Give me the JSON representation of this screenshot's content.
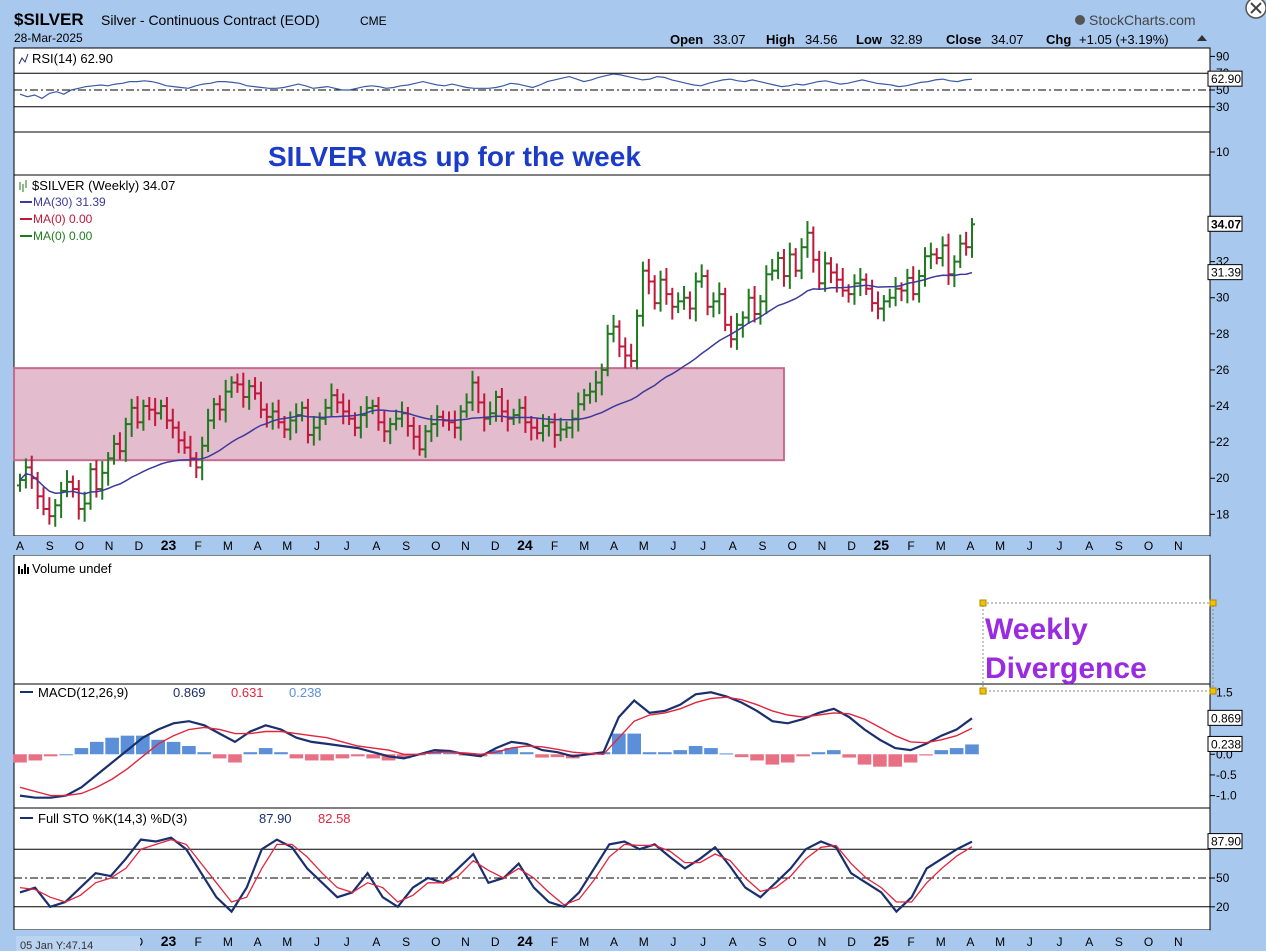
{
  "header": {
    "symbol": "$SILVER",
    "description": "Silver - Continuous Contract (EOD)",
    "exchange": "CME",
    "date": "28-Mar-2025",
    "brand": "StockCharts.com",
    "open_label": "Open",
    "open": "33.07",
    "high_label": "High",
    "high": "34.56",
    "low_label": "Low",
    "low": "32.89",
    "close_label": "Close",
    "close": "34.07",
    "chg_label": "Chg",
    "chg": "+1.05 (+3.19%)"
  },
  "annotations": {
    "headline": "SILVER was up for the week",
    "weekly": "Weekly",
    "divergence": "Divergence"
  },
  "footer": {
    "cursor_readout": "05 Jan Y:47.14"
  },
  "colors": {
    "bull": "#1f7a1f",
    "bear": "#c0173a",
    "ma": "#3c3a9a",
    "macd": "#1a2f6e",
    "signal": "#e0263e",
    "hist_pos": "#5b8fd8",
    "hist_neg": "#e87084",
    "box_fill": "#d9a6bd",
    "box_stroke": "#c86a8f",
    "panel_bg": "#ffffff",
    "outer_bg": "#a9c8ee",
    "headline": "#1a3cc8",
    "divergence": "#9a2be0"
  },
  "chart_data": [
    {
      "type": "line",
      "panel": "rsi",
      "title": "RSI(14) 62.90",
      "current": 62.9,
      "ylim": [
        0,
        100
      ],
      "ticks": [
        "90",
        "70",
        "50",
        "30",
        "10"
      ],
      "levels": [
        70,
        50,
        30
      ],
      "values": [
        45,
        42,
        44,
        40,
        46,
        48,
        45,
        50,
        52,
        54,
        55,
        56,
        55,
        57,
        58,
        60,
        60,
        61,
        60,
        58,
        55,
        54,
        53,
        52,
        55,
        57,
        58,
        60,
        60,
        59,
        58,
        55,
        54,
        53,
        52,
        52,
        53,
        55,
        57,
        55,
        52,
        53,
        54,
        52,
        50,
        50,
        52,
        54,
        55,
        54,
        52,
        53,
        55,
        56,
        58,
        60,
        58,
        56,
        55,
        57,
        55,
        53,
        52,
        52,
        52,
        53,
        55,
        58,
        57,
        55,
        53,
        56,
        60,
        62,
        64,
        66,
        63,
        60,
        62,
        65,
        67,
        69,
        68,
        66,
        64,
        62,
        63,
        66,
        65,
        62,
        60,
        58,
        56,
        55,
        58,
        60,
        62,
        63,
        61,
        60,
        62,
        60,
        58,
        56,
        54,
        55,
        57,
        56,
        58,
        60,
        61,
        59,
        57,
        58,
        60,
        62,
        60,
        58,
        57,
        56,
        54,
        55,
        57,
        59,
        60,
        62,
        63,
        61,
        60,
        62,
        62.9
      ]
    },
    {
      "type": "ohlc",
      "panel": "price",
      "title": "$SILVER (Weekly) 34.07",
      "legend": [
        {
          "name": "MA(30) 31.39",
          "color": "#3c3a9a"
        },
        {
          "name": "MA(0) 0.00",
          "color": "#c0173a"
        },
        {
          "name": "MA(0) 0.00",
          "color": "#1f7a1f"
        }
      ],
      "ylim": [
        16.8,
        36.8
      ],
      "ticks": [
        "32",
        "30",
        "28",
        "26",
        "24",
        "22",
        "20",
        "18"
      ],
      "last_price_label": "34.07",
      "ma_label": "31.39",
      "box": {
        "x0": 0,
        "x1": 130,
        "y0": 21.0,
        "y1": 26.1
      },
      "closes": [
        19.9,
        20.6,
        20.0,
        19.0,
        18.3,
        17.9,
        18.5,
        19.3,
        19.8,
        19.4,
        18.3,
        18.6,
        20.5,
        19.4,
        20.3,
        21.1,
        21.9,
        21.5,
        23.0,
        23.9,
        23.1,
        24.0,
        23.8,
        23.6,
        24.0,
        23.2,
        22.8,
        22.1,
        21.7,
        21.1,
        20.6,
        21.8,
        23.2,
        24.1,
        23.8,
        24.8,
        25.3,
        25.2,
        24.5,
        25.1,
        24.7,
        23.8,
        23.4,
        23.7,
        23.1,
        22.7,
        23.2,
        23.5,
        23.9,
        22.4,
        22.8,
        23.3,
        23.9,
        24.6,
        24.2,
        23.7,
        23.3,
        22.8,
        23.5,
        23.9,
        24.0,
        23.1,
        22.6,
        23.0,
        23.3,
        23.6,
        22.9,
        22.3,
        21.6,
        22.6,
        23.0,
        23.4,
        23.2,
        23.1,
        22.8,
        23.7,
        24.2,
        25.3,
        24.2,
        23.3,
        23.6,
        24.5,
        23.7,
        23.3,
        23.5,
        23.9,
        23.1,
        22.8,
        22.5,
        22.9,
        23.1,
        22.4,
        22.7,
        22.8,
        23.3,
        24.1,
        24.6,
        24.8,
        25.3,
        26.0,
        28.0,
        28.4,
        27.3,
        26.8,
        26.5,
        29.0,
        31.5,
        30.9,
        29.7,
        31.0,
        30.2,
        29.5,
        29.8,
        30.0,
        29.4,
        30.9,
        31.2,
        29.5,
        29.8,
        30.2,
        28.5,
        27.7,
        28.5,
        28.9,
        30.0,
        29.1,
        29.8,
        31.3,
        31.5,
        32.2,
        31.2,
        32.4,
        31.5,
        32.8,
        33.6,
        32.1,
        30.8,
        31.9,
        31.4,
        31.0,
        30.4,
        30.2,
        30.8,
        31.0,
        30.5,
        29.7,
        29.4,
        29.8,
        30.0,
        30.5,
        30.4,
        31.1,
        30.2,
        31.2,
        32.3,
        32.4,
        32.2,
        32.9,
        31.3,
        32.0,
        33.0,
        32.8,
        34.07
      ]
    },
    {
      "type": "line",
      "panel": "macd",
      "title": "MACD(12,26,9)",
      "values_label": [
        "0.869",
        "0.631",
        "0.238"
      ],
      "ylim": [
        -1.3,
        1.7
      ],
      "ticks": [
        "1.5",
        "0.0",
        "-0.5",
        "-1.0"
      ],
      "series": [
        {
          "name": "0.869",
          "role": "macd",
          "values": [
            -1.0,
            -1.05,
            -1.05,
            -1.0,
            -0.8,
            -0.5,
            -0.2,
            0.1,
            0.4,
            0.6,
            0.75,
            0.8,
            0.7,
            0.5,
            0.3,
            0.55,
            0.7,
            0.6,
            0.4,
            0.3,
            0.25,
            0.2,
            0.15,
            0.05,
            -0.05,
            -0.1,
            0.0,
            0.1,
            0.08,
            0.0,
            -0.05,
            0.15,
            0.3,
            0.25,
            0.1,
            0.05,
            -0.05,
            0.0,
            0.05,
            0.9,
            1.3,
            1.0,
            1.05,
            1.2,
            1.45,
            1.5,
            1.4,
            1.25,
            1.05,
            0.8,
            0.75,
            0.85,
            1.0,
            1.1,
            0.9,
            0.6,
            0.35,
            0.15,
            0.1,
            0.25,
            0.45,
            0.6,
            0.869
          ]
        },
        {
          "name": "0.631",
          "role": "signal",
          "values": [
            -0.8,
            -0.9,
            -1.0,
            -1.0,
            -0.95,
            -0.8,
            -0.6,
            -0.35,
            -0.05,
            0.25,
            0.45,
            0.6,
            0.65,
            0.6,
            0.5,
            0.5,
            0.55,
            0.55,
            0.5,
            0.45,
            0.4,
            0.3,
            0.2,
            0.15,
            0.1,
            0.0,
            0.0,
            0.05,
            0.05,
            0.03,
            0.0,
            0.05,
            0.15,
            0.2,
            0.18,
            0.12,
            0.05,
            0.02,
            0.0,
            0.4,
            0.8,
            0.95,
            1.0,
            1.1,
            1.25,
            1.35,
            1.38,
            1.32,
            1.2,
            1.05,
            0.95,
            0.9,
            0.95,
            1.0,
            0.98,
            0.85,
            0.65,
            0.45,
            0.3,
            0.28,
            0.35,
            0.45,
            0.631
          ]
        }
      ],
      "histogram": [
        -0.2,
        -0.15,
        -0.05,
        0.0,
        0.15,
        0.3,
        0.4,
        0.45,
        0.45,
        0.35,
        0.3,
        0.2,
        0.05,
        -0.1,
        -0.2,
        0.05,
        0.15,
        0.05,
        -0.1,
        -0.15,
        -0.15,
        -0.1,
        -0.05,
        -0.1,
        -0.15,
        -0.1,
        0.0,
        0.05,
        0.03,
        -0.03,
        -0.05,
        0.1,
        0.15,
        0.05,
        -0.08,
        -0.07,
        -0.1,
        -0.02,
        0.05,
        0.5,
        0.5,
        0.05,
        0.05,
        0.1,
        0.2,
        0.15,
        0.02,
        -0.07,
        -0.15,
        -0.25,
        -0.2,
        -0.05,
        0.05,
        0.1,
        -0.08,
        -0.25,
        -0.3,
        -0.3,
        -0.2,
        -0.03,
        0.1,
        0.15,
        0.238
      ]
    },
    {
      "type": "line",
      "panel": "stochastic",
      "title": "Full STO %K(14,3) %D(3)",
      "values_label": [
        "87.90",
        "82.58"
      ],
      "ylim": [
        0,
        100
      ],
      "ticks": [
        "50",
        "20"
      ],
      "levels": [
        80,
        50,
        20
      ],
      "series": [
        {
          "name": "87.90",
          "role": "k",
          "values": [
            35,
            40,
            20,
            25,
            40,
            55,
            52,
            70,
            90,
            88,
            92,
            80,
            55,
            30,
            15,
            40,
            80,
            90,
            82,
            60,
            45,
            30,
            35,
            55,
            30,
            20,
            40,
            50,
            45,
            60,
            75,
            45,
            50,
            65,
            40,
            25,
            20,
            35,
            60,
            85,
            88,
            80,
            85,
            72,
            60,
            70,
            82,
            62,
            40,
            30,
            45,
            60,
            80,
            88,
            82,
            55,
            45,
            35,
            15,
            30,
            60,
            70,
            80,
            87.9
          ]
        },
        {
          "name": "82.58",
          "role": "d",
          "values": [
            40,
            38,
            30,
            25,
            32,
            45,
            50,
            60,
            80,
            85,
            90,
            85,
            65,
            45,
            25,
            30,
            60,
            85,
            85,
            72,
            55,
            40,
            35,
            45,
            40,
            25,
            32,
            45,
            45,
            52,
            68,
            58,
            50,
            60,
            50,
            35,
            22,
            28,
            48,
            72,
            85,
            84,
            84,
            78,
            66,
            66,
            75,
            68,
            50,
            36,
            40,
            52,
            70,
            82,
            84,
            65,
            50,
            40,
            25,
            25,
            45,
            60,
            73,
            82.58
          ]
        }
      ]
    }
  ],
  "xaxis": {
    "labels": [
      "A",
      "S",
      "O",
      "N",
      "D",
      "23",
      "F",
      "M",
      "A",
      "M",
      "J",
      "J",
      "A",
      "S",
      "O",
      "N",
      "D",
      "24",
      "F",
      "M",
      "A",
      "M",
      "J",
      "J",
      "A",
      "S",
      "O",
      "N",
      "D",
      "25",
      "F",
      "M",
      "A",
      "M",
      "J",
      "J",
      "A",
      "S",
      "O",
      "N"
    ],
    "bold": [
      "23",
      "24",
      "25"
    ]
  },
  "panels": {
    "volume_title": "Volume undef"
  }
}
